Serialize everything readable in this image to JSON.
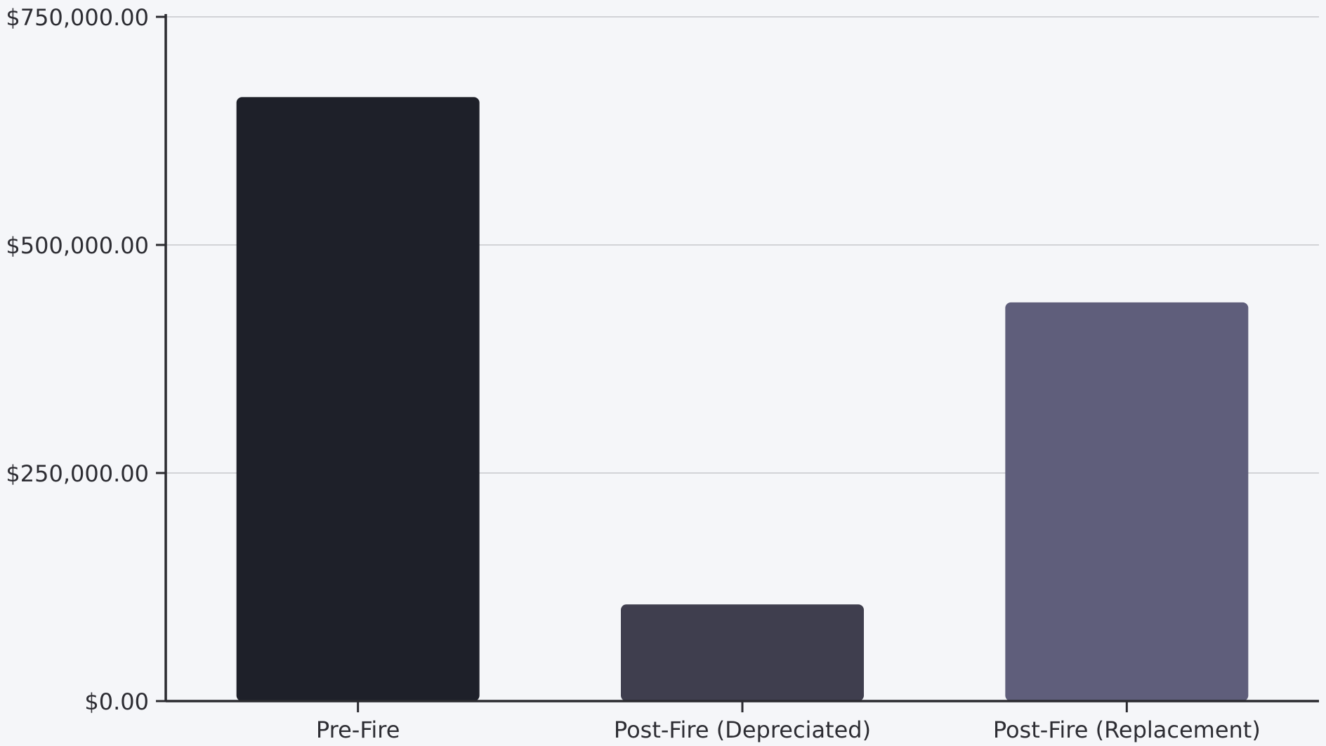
{
  "chart_data": {
    "type": "bar",
    "categories": [
      "Pre-Fire",
      "Post-Fire (Depreciated)",
      "Post-Fire (Replacement)"
    ],
    "values": [
      662000,
      106000,
      437000
    ],
    "ylim": [
      0,
      750000
    ],
    "yticks": [
      0,
      250000,
      500000,
      750000
    ],
    "ytick_labels": [
      "$0.00",
      "$250,000.00",
      "$500,000.00",
      "$750,000.00"
    ],
    "title": "",
    "xlabel": "",
    "ylabel": "",
    "grid": true,
    "legend": "none",
    "bar_colors": [
      "#1e2029",
      "#3f3e4e",
      "#5f5e7b"
    ]
  }
}
